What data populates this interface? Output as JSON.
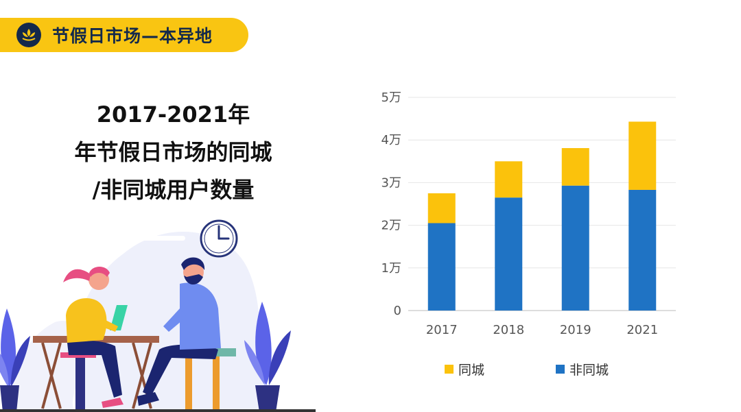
{
  "header": {
    "title": "节假日市场—本异地"
  },
  "headline": {
    "line1": "2017-2021年",
    "line2": "年节假日市场的同城",
    "line3": "/非同城用户数量"
  },
  "colors": {
    "accent": "#f9c512",
    "navy": "#13294b",
    "local": "#fbc20c",
    "nonlocal": "#1f73c4"
  },
  "chart_data": {
    "type": "bar",
    "stacked": true,
    "categories": [
      "2017",
      "2018",
      "2019",
      "2021"
    ],
    "series": [
      {
        "name": "非同城",
        "values": [
          20500,
          26500,
          29300,
          28300
        ],
        "color": "#1f73c4"
      },
      {
        "name": "同城",
        "values": [
          7000,
          8500,
          8800,
          16000
        ],
        "color": "#fbc20c"
      }
    ],
    "y_ticks": [
      {
        "value": 0,
        "label": "0"
      },
      {
        "value": 10000,
        "label": "1万"
      },
      {
        "value": 20000,
        "label": "2万"
      },
      {
        "value": 30000,
        "label": "3万"
      },
      {
        "value": 40000,
        "label": "4万"
      },
      {
        "value": 50000,
        "label": "5万"
      }
    ],
    "ylim": [
      0,
      50000
    ],
    "legend": {
      "position": "bottom",
      "items": [
        "同城",
        "非同城"
      ]
    },
    "grid": true
  }
}
